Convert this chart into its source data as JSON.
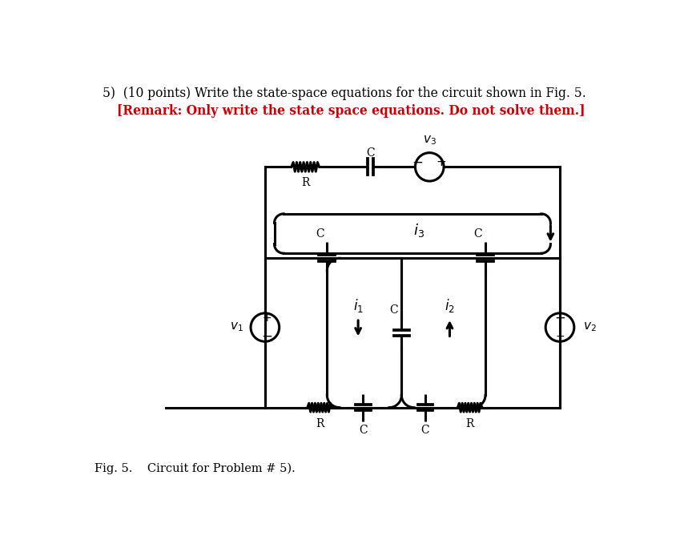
{
  "title_line1": "5)  (10 points) Write the state-space equations for the circuit shown in Fig. 5.",
  "title_line2": "[Remark: Only write the state space equations. Do not solve them.]",
  "fig_caption": "Fig. 5.    Circuit for Problem # 5).",
  "title_color": "#000000",
  "remark_color": "#cc0000",
  "line_color": "#000000",
  "bg_color": "#ffffff",
  "lw": 2.2
}
